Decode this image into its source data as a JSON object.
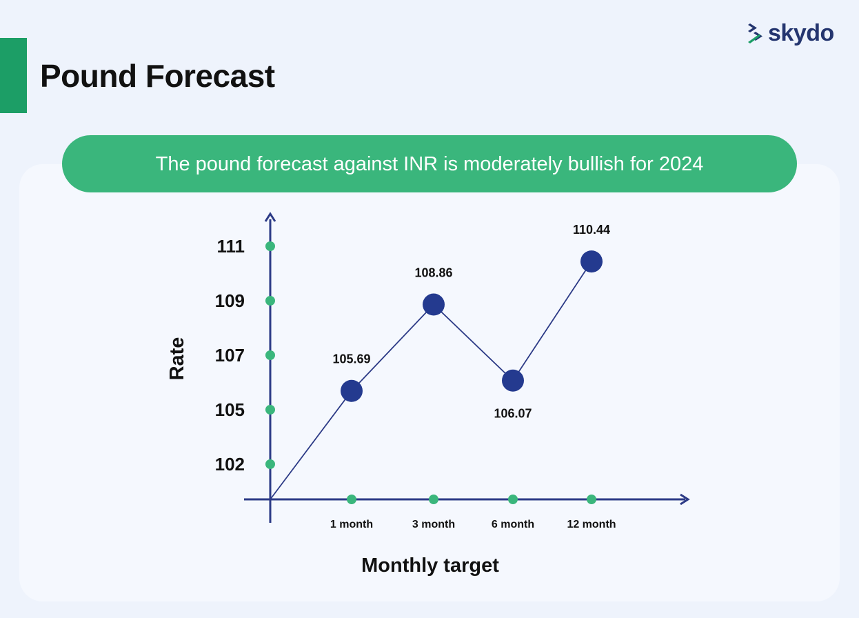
{
  "page": {
    "title": "Pound Forecast",
    "banner": "The pound forecast against INR is moderately bullish for 2024"
  },
  "logo": {
    "text": "skydo",
    "icon": "skydo-chevrons-icon"
  },
  "colors": {
    "accent_green": "#1c9e66",
    "banner_green": "#3ab67c",
    "axis_navy": "#2c3a86",
    "point_navy": "#243a8f",
    "tick_green": "#3ab67c"
  },
  "chart_data": {
    "type": "line",
    "xlabel": "Monthly target",
    "ylabel": "Rate",
    "categories": [
      "1 month",
      "3 month",
      "6 month",
      "12 month"
    ],
    "values": [
      105.69,
      108.86,
      106.07,
      110.44
    ],
    "data_labels": [
      "105.69",
      "108.86",
      "106.07",
      "110.44"
    ],
    "y_ticks": [
      102,
      105,
      107,
      109,
      111
    ],
    "y_tick_labels": [
      "102",
      "105",
      "107",
      "109",
      "111"
    ],
    "grid": false,
    "legend": "none"
  }
}
